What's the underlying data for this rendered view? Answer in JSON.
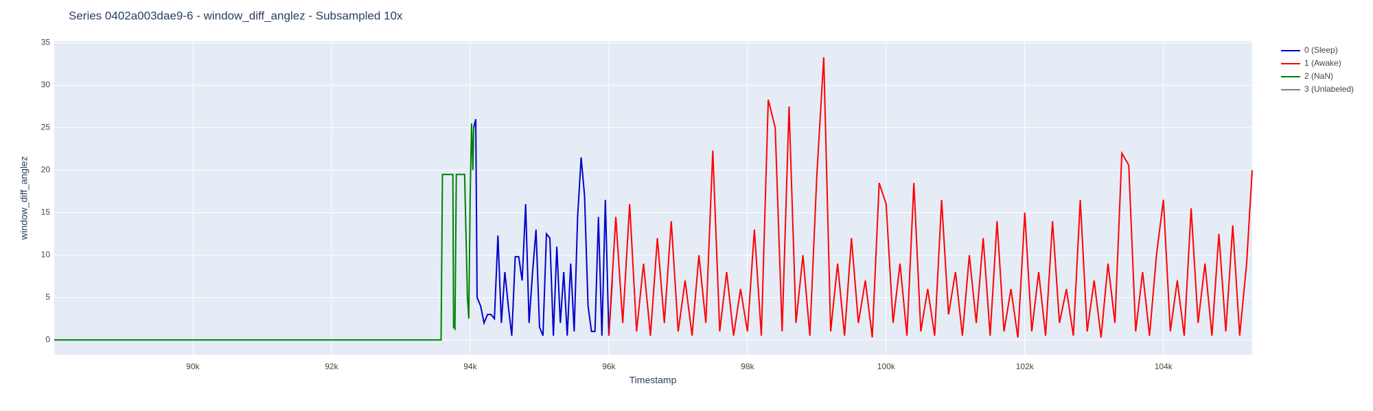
{
  "chart_data": {
    "type": "line",
    "title": "Series 0402a003dae9-6 - window_diff_anglez - Subsampled 10x",
    "x_label": "Timestamp",
    "y_label": "window_diff_anglez",
    "xlim": [
      88000,
      105280
    ],
    "ylim": [
      -1.75,
      35.2
    ],
    "xticks": [
      {
        "value": 90000,
        "label": "90k"
      },
      {
        "value": 92000,
        "label": "92k"
      },
      {
        "value": 94000,
        "label": "94k"
      },
      {
        "value": 96000,
        "label": "96k"
      },
      {
        "value": 98000,
        "label": "98k"
      },
      {
        "value": 100000,
        "label": "100k"
      },
      {
        "value": 102000,
        "label": "102k"
      },
      {
        "value": 104000,
        "label": "104k"
      }
    ],
    "yticks": [
      0,
      5,
      10,
      15,
      20,
      25,
      30,
      35
    ],
    "grid": true,
    "series": [
      {
        "name": "0 (Sleep)",
        "color": "#0000cc",
        "x": [
          94050,
          94080,
          94100,
          94150,
          94200,
          94250,
          94300,
          94350,
          94400,
          94450,
          94500,
          94550,
          94600,
          94650,
          94700,
          94750,
          94800,
          94850,
          94900,
          94950,
          95000,
          95050,
          95100,
          95150,
          95200,
          95250,
          95300,
          95350,
          95400,
          95450,
          95500,
          95550,
          95600,
          95650,
          95700,
          95750,
          95800,
          95850,
          95900,
          95950,
          96000,
          96050
        ],
        "values": [
          25,
          26,
          5,
          4,
          2,
          3,
          3,
          2.5,
          12.3,
          2,
          8,
          4,
          0.5,
          9.8,
          9.8,
          7,
          16,
          2,
          8,
          13,
          1.5,
          0.5,
          12.5,
          12,
          0.5,
          11,
          2,
          8,
          0.5,
          9,
          1,
          14.5,
          21.5,
          17,
          4,
          1,
          1,
          14.5,
          0.5,
          16.5,
          0.5,
          7
        ]
      },
      {
        "name": "1 (Awake)",
        "color": "#ff0000",
        "x": [
          96000,
          96100,
          96200,
          96300,
          96400,
          96500,
          96600,
          96700,
          96800,
          96900,
          97000,
          97100,
          97200,
          97300,
          97400,
          97500,
          97600,
          97700,
          97800,
          97900,
          98000,
          98100,
          98200,
          98300,
          98400,
          98500,
          98600,
          98700,
          98800,
          98900,
          99000,
          99100,
          99200,
          99300,
          99400,
          99500,
          99600,
          99700,
          99800,
          99900,
          100000,
          100100,
          100200,
          100300,
          100400,
          100500,
          100600,
          100700,
          100800,
          100900,
          101000,
          101100,
          101200,
          101300,
          101400,
          101500,
          101600,
          101700,
          101800,
          101900,
          102000,
          102100,
          102200,
          102300,
          102400,
          102500,
          102600,
          102700,
          102800,
          102900,
          103000,
          103100,
          103200,
          103300,
          103400,
          103500,
          103600,
          103700,
          103800,
          103900,
          104000,
          104100,
          104200,
          104300,
          104400,
          104500,
          104600,
          104700,
          104800,
          104900,
          105000,
          105100,
          105200,
          105280
        ],
        "values": [
          0.5,
          14.5,
          2,
          16,
          1,
          9,
          0.5,
          12,
          2,
          14,
          1,
          7,
          0.5,
          10,
          2,
          22.3,
          1,
          8,
          0.5,
          6,
          1,
          13,
          0.5,
          28.3,
          25,
          1,
          27.5,
          2,
          10,
          0.5,
          19.3,
          33.3,
          1,
          9,
          0.5,
          12,
          2,
          7,
          0.3,
          18.5,
          16,
          2,
          9,
          0.5,
          18.5,
          1,
          6,
          0.5,
          16.5,
          3,
          8,
          0.5,
          10,
          2,
          12,
          0.5,
          14,
          1,
          6,
          0.3,
          15,
          1,
          8,
          0.5,
          14,
          2,
          6,
          0.5,
          16.5,
          1,
          7,
          0.3,
          9,
          2,
          22,
          20.6,
          1,
          8,
          0.5,
          10,
          16.5,
          1,
          7,
          0.5,
          15.5,
          2,
          9,
          0.5,
          12.5,
          1,
          13.5,
          0.5,
          9,
          20
        ]
      },
      {
        "name": "2 (NaN)",
        "color": "#008000",
        "x": [
          88000,
          93580,
          93600,
          93750,
          93760,
          93780,
          93800,
          93920,
          93960,
          93980,
          94000,
          94020,
          94040,
          94050
        ],
        "values": [
          0,
          0,
          19.5,
          19.5,
          1.5,
          1.3,
          19.5,
          19.5,
          5,
          2.5,
          17,
          25.5,
          20,
          25
        ]
      },
      {
        "name": "3 (Unlabeled)",
        "color": "#808080",
        "x": [],
        "values": []
      }
    ]
  }
}
